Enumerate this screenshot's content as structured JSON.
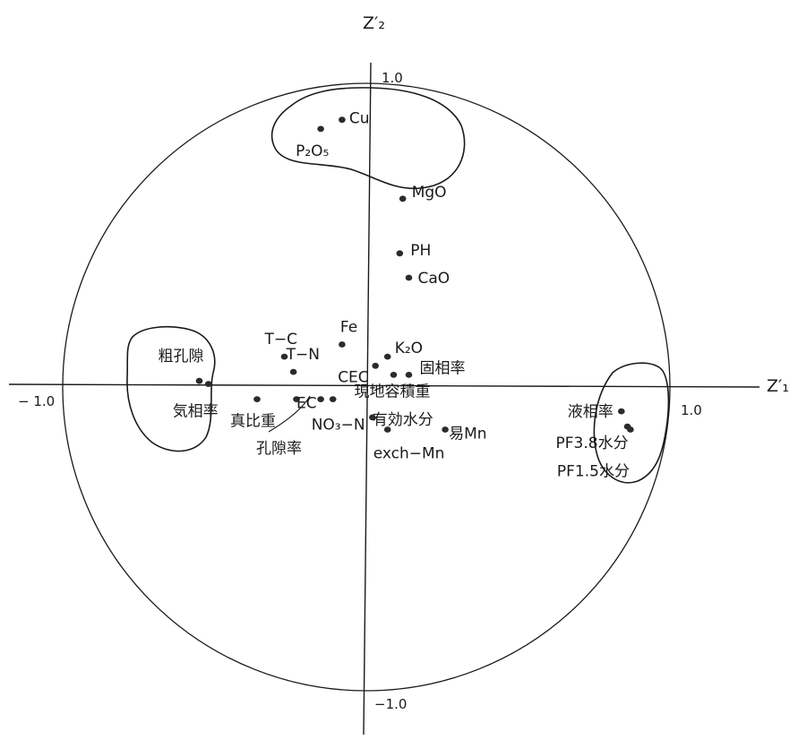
{
  "chart_data": {
    "type": "scatter",
    "title": "",
    "xlabel": "Z′₁",
    "ylabel": "Z′₂",
    "xlim": [
      -1.0,
      1.0
    ],
    "ylim": [
      -1.0,
      1.0
    ],
    "grid": false,
    "legend": "none",
    "tick_labels": {
      "x_min": "− 1.0",
      "x_max": "1.0",
      "y_max": "1.0",
      "y_min": "−1.0"
    },
    "points": [
      {
        "label": "Cu",
        "x": -0.08,
        "y": 0.88
      },
      {
        "label": "P₂O₅",
        "x": -0.15,
        "y": 0.85
      },
      {
        "label": "MgO",
        "x": 0.12,
        "y": 0.62
      },
      {
        "label": "PH",
        "x": 0.11,
        "y": 0.44
      },
      {
        "label": "CaO",
        "x": 0.14,
        "y": 0.36
      },
      {
        "label": "Fe",
        "x": -0.08,
        "y": 0.14
      },
      {
        "label": "T−C",
        "x": -0.27,
        "y": 0.1
      },
      {
        "label": "T−N",
        "x": -0.24,
        "y": 0.05
      },
      {
        "label": "K₂O",
        "x": 0.07,
        "y": 0.1
      },
      {
        "label": "CEC",
        "x": 0.03,
        "y": 0.07
      },
      {
        "label": "固相率",
        "x": 0.14,
        "y": 0.04
      },
      {
        "label": "EC",
        "x": -0.23,
        "y": -0.04
      },
      {
        "label": "",
        "x": -0.15,
        "y": -0.04
      },
      {
        "label": "現地容積重",
        "x": 0.09,
        "y": 0.04
      },
      {
        "label": "粗孔隙",
        "x": -0.55,
        "y": 0.02
      },
      {
        "label": "気相率",
        "x": -0.52,
        "y": 0.01
      },
      {
        "label": "真比重",
        "x": -0.36,
        "y": -0.04
      },
      {
        "label": "NO₃−N",
        "x": -0.11,
        "y": -0.04
      },
      {
        "label": "有効水分",
        "x": 0.02,
        "y": -0.1
      },
      {
        "label": "exch−Mn",
        "x": 0.07,
        "y": -0.14
      },
      {
        "label": "易Mn",
        "x": 0.26,
        "y": -0.14
      },
      {
        "label": "液相率",
        "x": 0.84,
        "y": -0.08
      },
      {
        "label": "PF3.8水分",
        "x": 0.86,
        "y": -0.13
      },
      {
        "label": "PF1.5水分",
        "x": 0.87,
        "y": -0.14
      }
    ],
    "annotations": [
      {
        "text": "孔隙率",
        "x": -0.08,
        "y": -0.04
      }
    ],
    "colors": {
      "ink": "#1a1a1a",
      "point": "#2b2b2b",
      "background": "#ffffff"
    }
  }
}
